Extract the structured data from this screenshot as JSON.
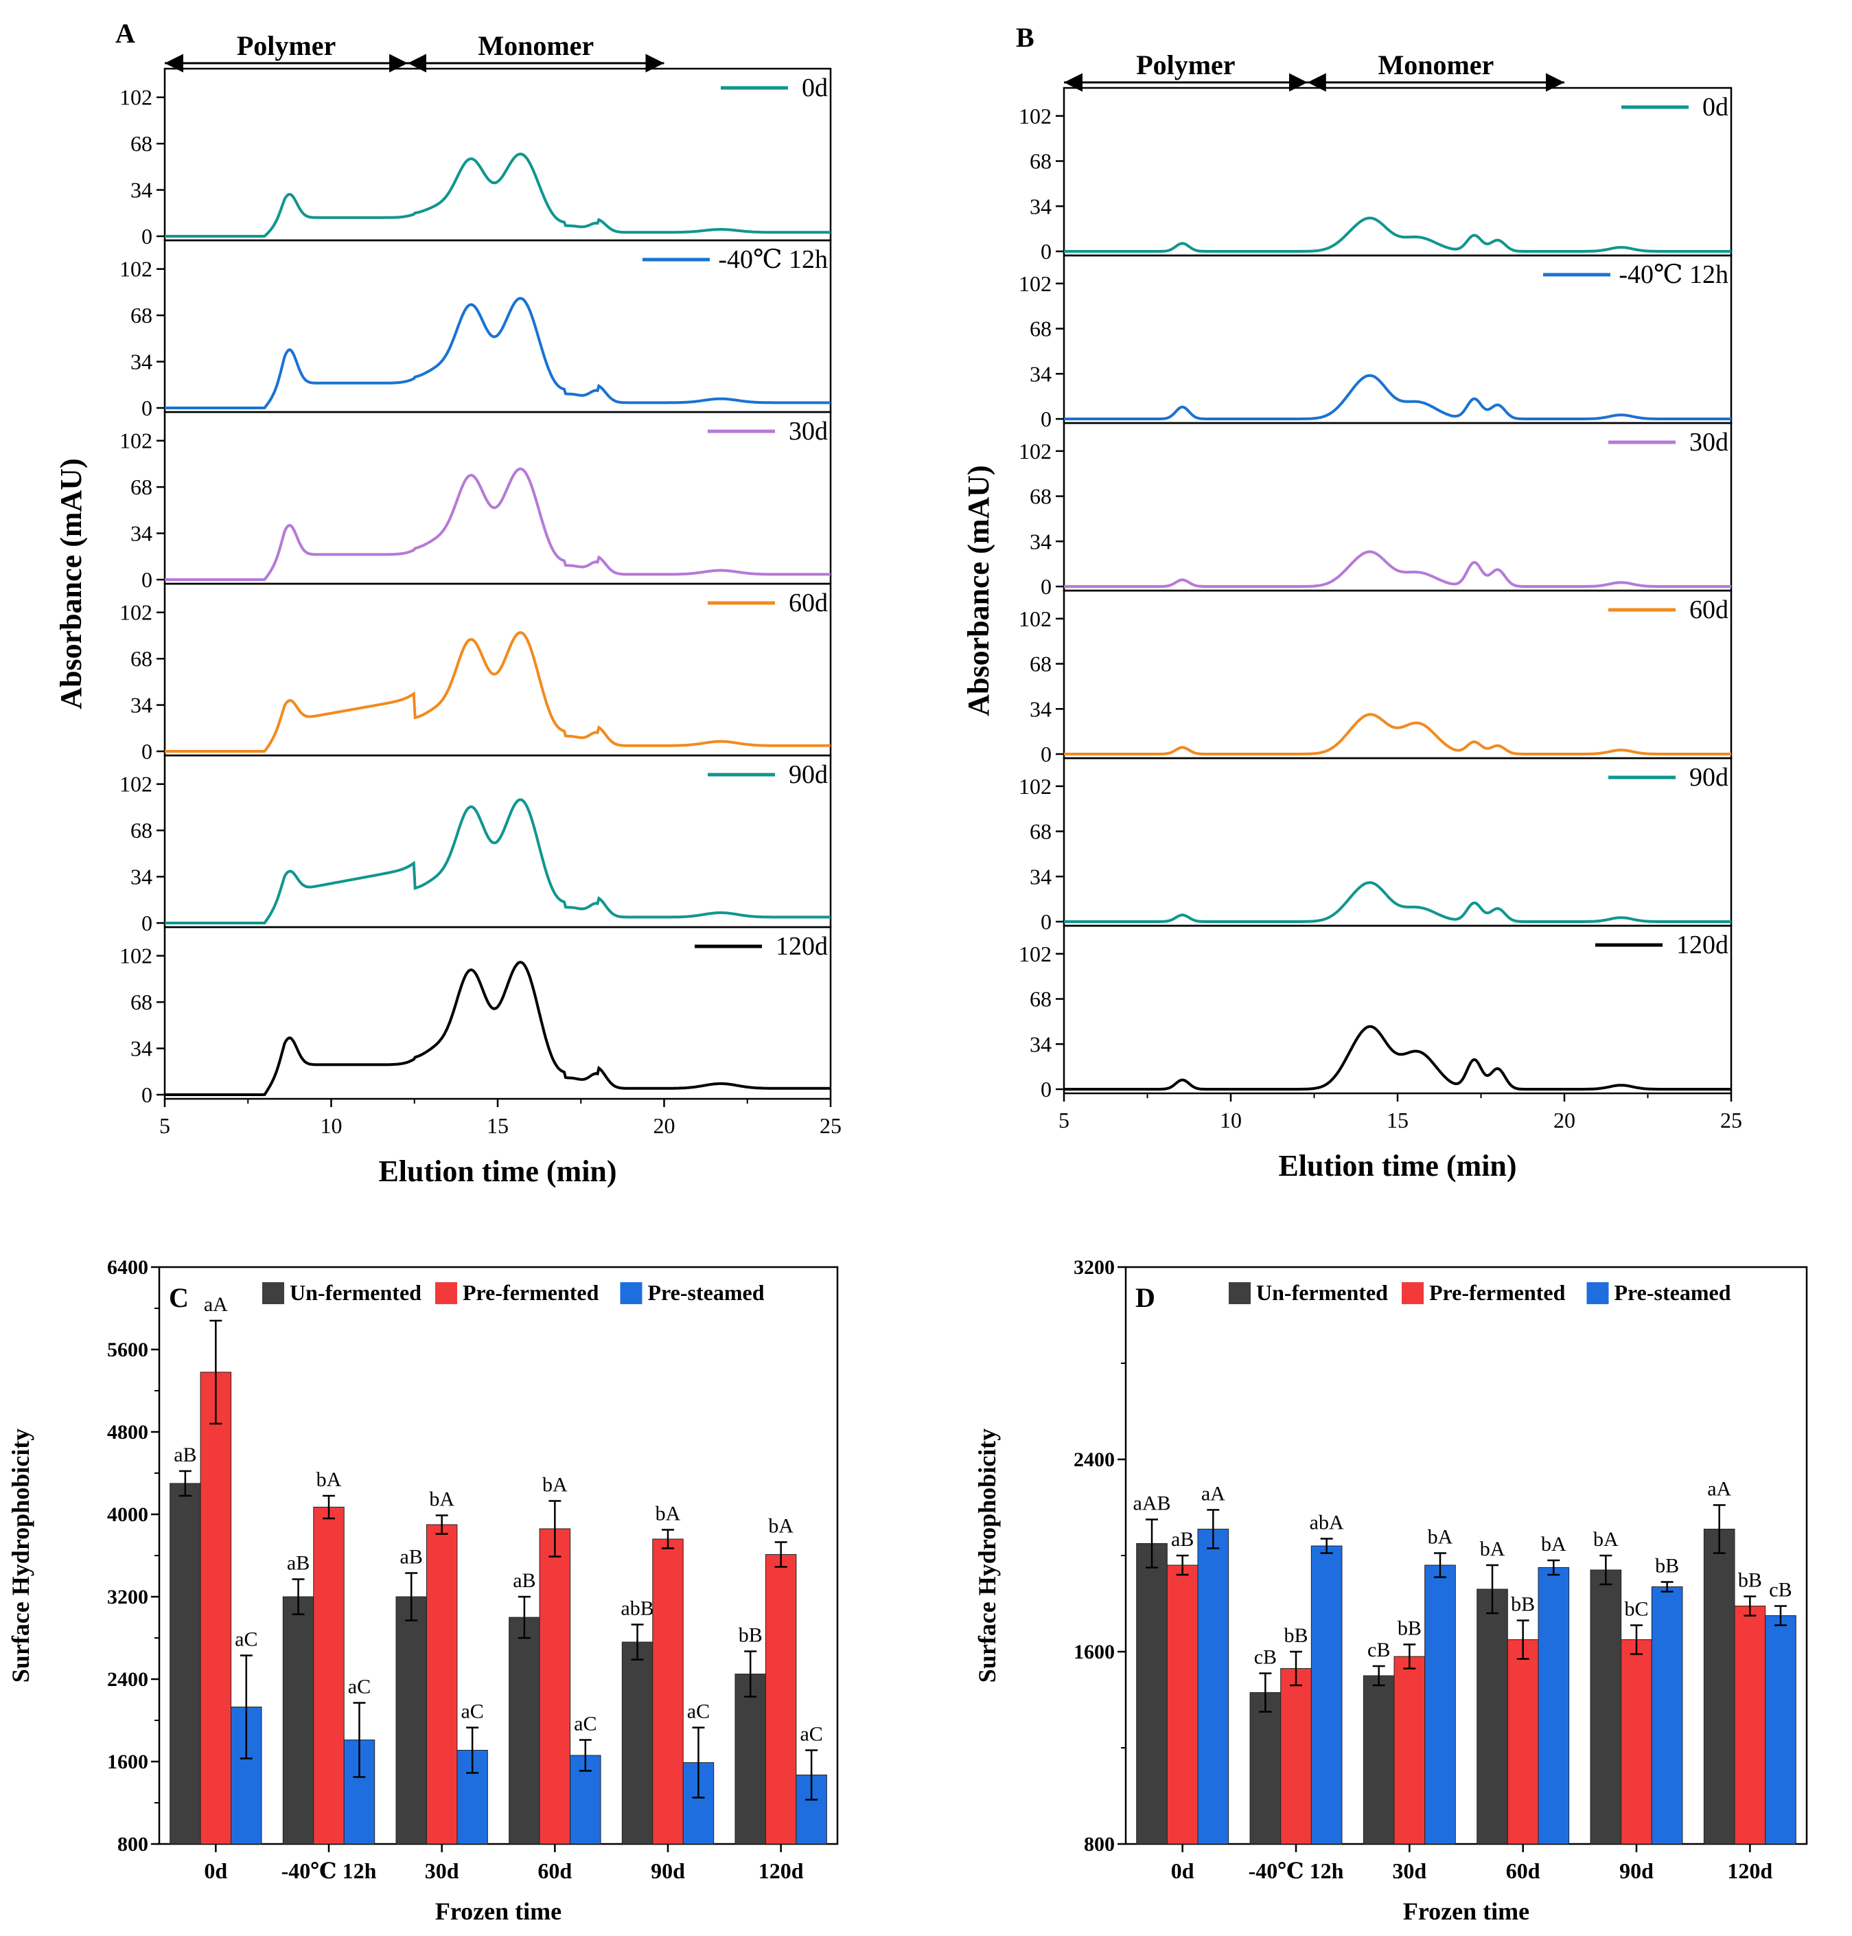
{
  "figure": {
    "panels": [
      {
        "id": "A",
        "label": "A",
        "type": "line",
        "x_label": "Elution time (min)",
        "y_label": "Absorbance (mAU)",
        "x_range": [
          5,
          25
        ],
        "x_ticks": [
          "5",
          "10",
          "15",
          "20",
          "25"
        ],
        "y_range": [
          0,
          120
        ],
        "y_ticks": [
          "0",
          "34",
          "68",
          "102"
        ],
        "region_labels": [
          {
            "text": "Polymer",
            "from": 5,
            "to": 12.3
          },
          {
            "text": "Monomer",
            "from": 12.3,
            "to": 20.0
          }
        ],
        "subplots": [
          {
            "name": "0d",
            "color": "#10968f",
            "scale": 0.72,
            "poly": 0.7,
            "mono": 1.0,
            "small": 1.0
          },
          {
            "name": "-40℃ 12h",
            "color": "#1a73d1",
            "scale": 0.96,
            "poly": 0.75,
            "mono": 1.0,
            "small": 1.0
          },
          {
            "name": "30d",
            "color": "#b57ad8",
            "scale": 0.97,
            "poly": 0.65,
            "mono": 1.0,
            "small": 1.0
          },
          {
            "name": "60d",
            "color": "#f28a1f",
            "scale": 1.04,
            "poly": 0.42,
            "mono": 1.0,
            "small": 1.0
          },
          {
            "name": "90d",
            "color": "#10968f",
            "scale": 1.08,
            "poly": 0.4,
            "mono": 1.0,
            "small": 1.0
          },
          {
            "name": "120d",
            "color": "#000000",
            "scale": 1.16,
            "poly": 0.5,
            "mono": 1.0,
            "small": 1.0
          }
        ]
      },
      {
        "id": "B",
        "label": "B",
        "type": "line",
        "x_label": "Elution time (min)",
        "y_label": "Absorbance (mAU)",
        "x_range": [
          5,
          25
        ],
        "x_ticks": [
          "5",
          "10",
          "15",
          "20",
          "25"
        ],
        "y_range": [
          0,
          120
        ],
        "y_ticks": [
          "0",
          "34",
          "68",
          "102"
        ],
        "region_labels": [
          {
            "text": "Polymer",
            "from": 5,
            "to": 12.3
          },
          {
            "text": "Monomer",
            "from": 12.3,
            "to": 20.0
          }
        ],
        "subplots": [
          {
            "name": "0d",
            "color": "#10968f",
            "peak": 23,
            "poly": 6,
            "p2": 15,
            "p3": 12
          },
          {
            "name": "-40℃ 12h",
            "color": "#1a73d1",
            "peak": 30,
            "poly": 9,
            "p2": 18,
            "p3": 15
          },
          {
            "name": "30d",
            "color": "#b57ad8",
            "peak": 24,
            "poly": 5,
            "p2": 15,
            "p3": 18
          },
          {
            "name": "60d",
            "color": "#f28a1f",
            "peak": 27,
            "poly": 5,
            "p2": 33,
            "p3": 9
          },
          {
            "name": "90d",
            "color": "#10968f",
            "peak": 27,
            "poly": 5,
            "p2": 15,
            "p3": 14
          },
          {
            "name": "120d",
            "color": "#000000",
            "peak": 43,
            "poly": 7,
            "p2": 40,
            "p3": 22
          }
        ]
      }
    ]
  },
  "chart_data": [
    {
      "id": "C",
      "label": "C",
      "type": "bar",
      "title": "",
      "xlabel": "Frozen time",
      "ylabel": "Surface Hydrophobicity",
      "ylim": [
        800,
        6400
      ],
      "yticks": [
        "800",
        "1600",
        "2400",
        "3200",
        "4000",
        "4800",
        "5600",
        "6400"
      ],
      "categories": [
        "0d",
        "-40℃ 12h",
        "30d",
        "60d",
        "90d",
        "120d"
      ],
      "series": [
        {
          "name": "Un-fermented",
          "color": "#3f3f3f",
          "values": [
            4300,
            3200,
            3200,
            3000,
            2760,
            2450
          ],
          "errors": [
            120,
            170,
            230,
            200,
            170,
            220
          ],
          "labels": [
            "aB",
            "aB",
            "aB",
            "aB",
            "abB",
            "bB"
          ]
        },
        {
          "name": "Pre-fermented",
          "color": "#f23a3a",
          "values": [
            5380,
            4070,
            3900,
            3860,
            3760,
            3610
          ],
          "errors": [
            500,
            110,
            90,
            270,
            90,
            120
          ],
          "labels": [
            "aA",
            "bA",
            "bA",
            "bA",
            "bA",
            "bA"
          ]
        },
        {
          "name": "Pre-steamed",
          "color": "#1f6ee0",
          "values": [
            2130,
            1810,
            1710,
            1660,
            1590,
            1470
          ],
          "errors": [
            500,
            360,
            220,
            150,
            340,
            240
          ],
          "labels": [
            "aC",
            "aC",
            "aC",
            "aC",
            "aC",
            "aC"
          ]
        }
      ]
    },
    {
      "id": "D",
      "label": "D",
      "type": "bar",
      "title": "",
      "xlabel": "Frozen time",
      "ylabel": "Surface Hydrophobicity",
      "ylim": [
        800,
        3200
      ],
      "yticks": [
        "800",
        "1600",
        "2400",
        "3200"
      ],
      "categories": [
        "0d",
        "-40℃ 12h",
        "30d",
        "60d",
        "90d",
        "120d"
      ],
      "series": [
        {
          "name": "Un-fermented",
          "color": "#3f3f3f",
          "values": [
            2050,
            1430,
            1500,
            1860,
            1940,
            2110
          ],
          "errors": [
            100,
            80,
            40,
            100,
            60,
            100
          ],
          "labels": [
            "aAB",
            "cB",
            "cB",
            "bA",
            "bA",
            "aA"
          ]
        },
        {
          "name": "Pre-fermented",
          "color": "#f23a3a",
          "values": [
            1960,
            1530,
            1580,
            1650,
            1650,
            1790
          ],
          "errors": [
            40,
            70,
            50,
            80,
            60,
            40
          ],
          "labels": [
            "aB",
            "bB",
            "bB",
            "bB",
            "bC",
            "bB"
          ]
        },
        {
          "name": "Pre-steamed",
          "color": "#1f6ee0",
          "values": [
            2110,
            2040,
            1960,
            1950,
            1870,
            1750
          ],
          "errors": [
            80,
            30,
            50,
            30,
            20,
            40
          ],
          "labels": [
            "aA",
            "abA",
            "bA",
            "bA",
            "bB",
            "cB"
          ]
        }
      ]
    }
  ]
}
